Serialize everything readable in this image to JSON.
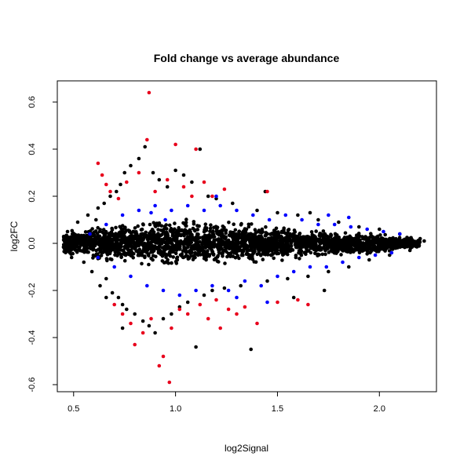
{
  "chart_data": {
    "type": "scatter",
    "title": "Fold change vs average abundance",
    "xlabel": "log2Signal",
    "ylabel": "log2FC",
    "xlim": [
      0.42,
      2.28
    ],
    "ylim": [
      -0.63,
      0.69
    ],
    "xticks": [
      0.5,
      1.0,
      1.5,
      2.0
    ],
    "xtick_labels": [
      "0.5",
      "1.0",
      "1.5",
      "2.0"
    ],
    "yticks": [
      -0.6,
      -0.4,
      -0.2,
      0.0,
      0.2,
      0.4,
      0.6
    ],
    "ytick_labels": [
      "-0.6",
      "-0.4",
      "-0.2",
      "0.0",
      "0.2",
      "0.4",
      "0.6"
    ],
    "grid": false,
    "legend": "none",
    "colors": {
      "black": "#000000",
      "blue": "#0000ff",
      "red": "#e8001c"
    },
    "series": [
      {
        "color": "#000000",
        "points": [
          [
            0.47,
            0.05
          ],
          [
            0.49,
            -0.06
          ],
          [
            0.52,
            0.09
          ],
          [
            0.55,
            -0.08
          ],
          [
            0.57,
            0.12
          ],
          [
            0.59,
            -0.12
          ],
          [
            0.62,
            0.15
          ],
          [
            0.63,
            -0.18
          ],
          [
            0.65,
            0.17
          ],
          [
            0.66,
            -0.15
          ],
          [
            0.68,
            0.2
          ],
          [
            0.69,
            -0.21
          ],
          [
            0.71,
            0.22
          ],
          [
            0.72,
            -0.23
          ],
          [
            0.73,
            0.25
          ],
          [
            0.74,
            -0.26
          ],
          [
            0.75,
            0.3
          ],
          [
            0.76,
            -0.28
          ],
          [
            0.78,
            0.33
          ],
          [
            0.8,
            -0.3
          ],
          [
            0.82,
            0.36
          ],
          [
            0.84,
            -0.33
          ],
          [
            0.85,
            0.41
          ],
          [
            0.87,
            -0.35
          ],
          [
            0.89,
            0.3
          ],
          [
            0.9,
            -0.38
          ],
          [
            0.92,
            0.27
          ],
          [
            0.94,
            -0.32
          ],
          [
            0.96,
            0.24
          ],
          [
            0.98,
            -0.3
          ],
          [
            1.0,
            0.31
          ],
          [
            1.02,
            -0.27
          ],
          [
            1.04,
            0.29
          ],
          [
            1.06,
            -0.25
          ],
          [
            1.08,
            0.26
          ],
          [
            1.1,
            -0.44
          ],
          [
            1.12,
            0.4
          ],
          [
            1.14,
            -0.22
          ],
          [
            1.16,
            0.2
          ],
          [
            1.18,
            -0.2
          ],
          [
            1.2,
            0.19
          ],
          [
            1.24,
            -0.19
          ],
          [
            1.28,
            0.17
          ],
          [
            1.32,
            -0.18
          ],
          [
            1.37,
            -0.45
          ],
          [
            1.4,
            0.14
          ],
          [
            1.45,
            -0.16
          ],
          [
            1.5,
            0.13
          ],
          [
            1.55,
            -0.15
          ],
          [
            1.6,
            0.12
          ],
          [
            1.65,
            -0.14
          ],
          [
            1.7,
            0.1
          ],
          [
            1.75,
            -0.12
          ],
          [
            1.8,
            0.09
          ],
          [
            1.85,
            -0.1
          ],
          [
            1.9,
            0.07
          ],
          [
            1.95,
            -0.07
          ],
          [
            2.0,
            0.06
          ],
          [
            2.05,
            -0.05
          ],
          [
            2.1,
            0.04
          ],
          [
            2.15,
            -0.03
          ],
          [
            2.2,
            0.02
          ],
          [
            2.22,
            0.01
          ],
          [
            0.74,
            -0.36
          ],
          [
            0.66,
            -0.23
          ],
          [
            0.61,
            0.1
          ],
          [
            1.44,
            0.22
          ],
          [
            1.58,
            -0.23
          ],
          [
            1.66,
            0.13
          ],
          [
            1.73,
            -0.2
          ]
        ]
      },
      {
        "color": "#0000ff",
        "points": [
          [
            0.58,
            0.04
          ],
          [
            0.62,
            -0.06
          ],
          [
            0.66,
            0.08
          ],
          [
            0.7,
            -0.1
          ],
          [
            0.74,
            0.12
          ],
          [
            0.78,
            -0.14
          ],
          [
            0.82,
            0.14
          ],
          [
            0.86,
            -0.18
          ],
          [
            0.9,
            0.16
          ],
          [
            0.94,
            -0.2
          ],
          [
            0.98,
            0.14
          ],
          [
            1.02,
            -0.22
          ],
          [
            1.06,
            0.16
          ],
          [
            1.1,
            -0.2
          ],
          [
            1.14,
            0.14
          ],
          [
            1.18,
            -0.18
          ],
          [
            1.22,
            0.16
          ],
          [
            1.26,
            -0.2
          ],
          [
            1.3,
            0.14
          ],
          [
            1.34,
            -0.16
          ],
          [
            1.38,
            0.12
          ],
          [
            1.42,
            -0.18
          ],
          [
            1.46,
            0.1
          ],
          [
            1.5,
            -0.14
          ],
          [
            1.54,
            0.12
          ],
          [
            1.58,
            -0.12
          ],
          [
            1.62,
            0.1
          ],
          [
            1.66,
            -0.1
          ],
          [
            1.7,
            0.08
          ],
          [
            1.74,
            -0.1
          ],
          [
            1.78,
            0.08
          ],
          [
            1.82,
            -0.08
          ],
          [
            1.86,
            0.07
          ],
          [
            1.9,
            -0.06
          ],
          [
            1.94,
            0.06
          ],
          [
            1.98,
            -0.05
          ],
          [
            2.02,
            0.05
          ],
          [
            2.06,
            -0.04
          ],
          [
            2.1,
            0.04
          ],
          [
            0.88,
            0.13
          ],
          [
            1.2,
            0.2
          ],
          [
            1.45,
            -0.25
          ],
          [
            1.3,
            -0.23
          ],
          [
            0.95,
            0.1
          ],
          [
            1.75,
            0.12
          ],
          [
            1.85,
            0.11
          ]
        ]
      },
      {
        "color": "#e8001c",
        "points": [
          [
            0.62,
            0.34
          ],
          [
            0.64,
            0.29
          ],
          [
            0.66,
            0.25
          ],
          [
            0.68,
            0.22
          ],
          [
            0.7,
            -0.26
          ],
          [
            0.72,
            0.19
          ],
          [
            0.74,
            -0.3
          ],
          [
            0.76,
            0.26
          ],
          [
            0.78,
            -0.34
          ],
          [
            0.8,
            -0.43
          ],
          [
            0.82,
            0.3
          ],
          [
            0.84,
            -0.38
          ],
          [
            0.86,
            0.44
          ],
          [
            0.87,
            0.64
          ],
          [
            0.88,
            -0.32
          ],
          [
            0.9,
            0.22
          ],
          [
            0.92,
            -0.52
          ],
          [
            0.94,
            -0.48
          ],
          [
            0.96,
            0.27
          ],
          [
            0.97,
            -0.59
          ],
          [
            0.98,
            -0.36
          ],
          [
            1.0,
            0.42
          ],
          [
            1.02,
            -0.28
          ],
          [
            1.04,
            0.24
          ],
          [
            1.06,
            -0.3
          ],
          [
            1.08,
            0.2
          ],
          [
            1.1,
            0.4
          ],
          [
            1.12,
            -0.26
          ],
          [
            1.14,
            0.26
          ],
          [
            1.16,
            -0.32
          ],
          [
            1.18,
            0.2
          ],
          [
            1.2,
            -0.24
          ],
          [
            1.22,
            -0.36
          ],
          [
            1.24,
            0.23
          ],
          [
            1.26,
            -0.28
          ],
          [
            1.3,
            -0.3
          ],
          [
            1.34,
            -0.27
          ],
          [
            1.4,
            -0.34
          ],
          [
            1.45,
            0.22
          ],
          [
            1.5,
            -0.25
          ],
          [
            1.6,
            -0.24
          ],
          [
            1.65,
            -0.26
          ]
        ]
      }
    ],
    "dense_band": {
      "color": "#000000",
      "x_range": [
        0.45,
        2.2
      ],
      "half_width": [
        [
          0.45,
          0.05
        ],
        [
          0.6,
          0.07
        ],
        [
          0.8,
          0.09
        ],
        [
          1.0,
          0.1
        ],
        [
          1.2,
          0.09
        ],
        [
          1.5,
          0.07
        ],
        [
          1.8,
          0.05
        ],
        [
          2.0,
          0.04
        ],
        [
          2.2,
          0.02
        ]
      ]
    }
  }
}
